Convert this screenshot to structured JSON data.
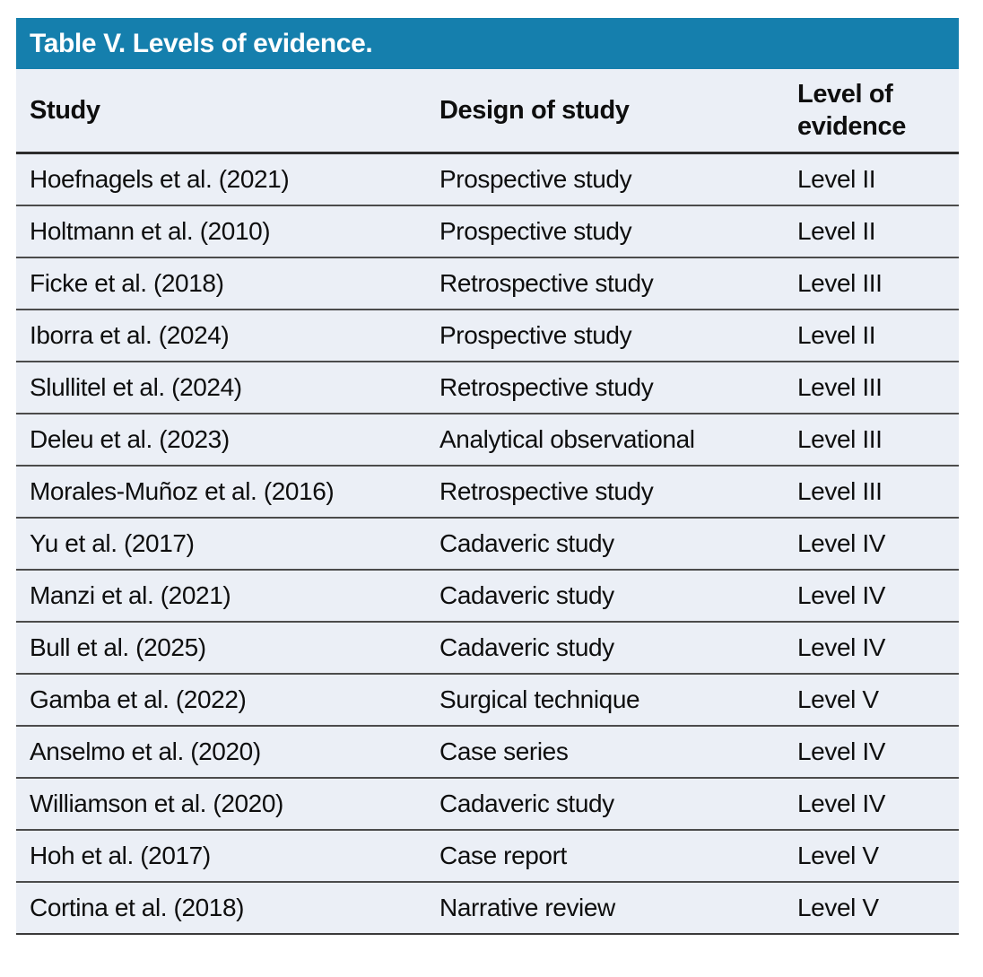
{
  "table": {
    "title": "Table V. Levels of evidence.",
    "columns": [
      "Study",
      "Design of study",
      "Level of evidence"
    ],
    "rows": [
      {
        "study": "Hoefnagels et al. (2021)",
        "design": "Prospective study",
        "level": "Level II"
      },
      {
        "study": "Holtmann et al. (2010)",
        "design": "Prospective study",
        "level": "Level II"
      },
      {
        "study": "Ficke et al. (2018)",
        "design": "Retrospective study",
        "level": "Level III"
      },
      {
        "study": "Iborra et al. (2024)",
        "design": "Prospective study",
        "level": "Level II"
      },
      {
        "study": "Slullitel et al. (2024)",
        "design": "Retrospective study",
        "level": "Level III"
      },
      {
        "study": "Deleu et al. (2023)",
        "design": "Analytical observational",
        "level": "Level III"
      },
      {
        "study": "Morales-Muñoz et al. (2016)",
        "design": "Retrospective study",
        "level": "Level III"
      },
      {
        "study": "Yu et al. (2017)",
        "design": "Cadaveric study",
        "level": "Level IV"
      },
      {
        "study": "Manzi et al. (2021)",
        "design": "Cadaveric study",
        "level": "Level IV"
      },
      {
        "study": "Bull et al. (2025)",
        "design": "Cadaveric study",
        "level": "Level IV"
      },
      {
        "study": "Gamba et al. (2022)",
        "design": "Surgical technique",
        "level": "Level V"
      },
      {
        "study": "Anselmo et al. (2020)",
        "design": "Case series",
        "level": "Level IV"
      },
      {
        "study": "Williamson et al. (2020)",
        "design": "Cadaveric study",
        "level": "Level IV"
      },
      {
        "study": "Hoh et al. (2017)",
        "design": "Case report",
        "level": "Level V"
      },
      {
        "study": "Cortina et al. (2018)",
        "design": "Narrative review",
        "level": "Level V"
      }
    ]
  },
  "colors": {
    "title_bar_bg": "#157fad",
    "title_text": "#ffffff",
    "body_bg": "#ebeff6",
    "row_rule": "#4b4b4b",
    "header_rule": "#2c2c2c",
    "text": "#0e0e0e",
    "page_bg": "#ffffff"
  }
}
